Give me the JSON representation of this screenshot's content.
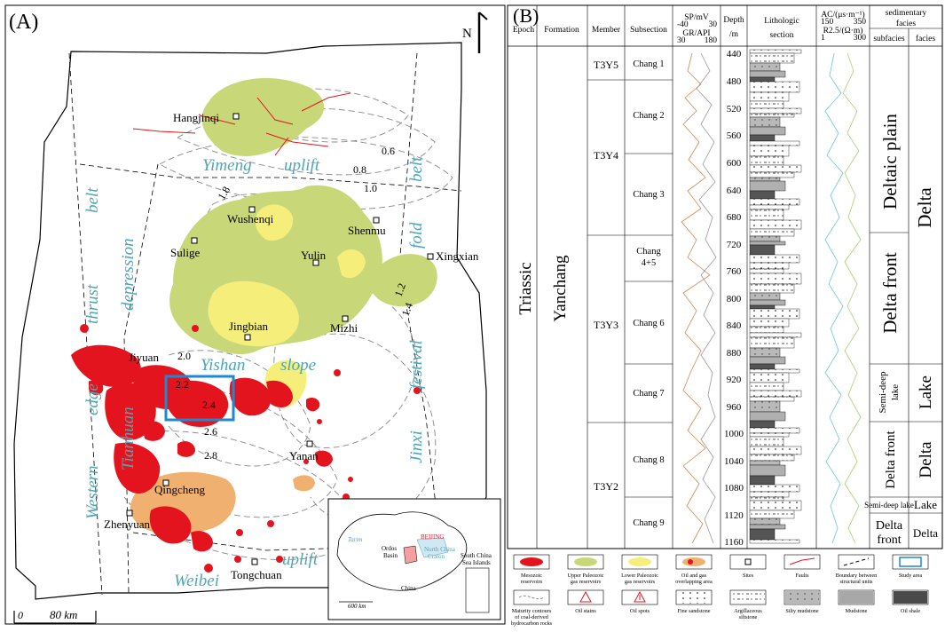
{
  "panel_a": {
    "label": "(A)",
    "north": "N",
    "scale_zero": "0",
    "scale_label": "80 km",
    "belts": {
      "western": "Western",
      "edge": "edge",
      "thrust": "thrust",
      "belt_left": "belt",
      "tianhuan": "Tianhuan",
      "depression": "depression",
      "yimeng": "Yimeng",
      "uplift_top": "uplift",
      "yishan": "Yishan",
      "slope": "slope",
      "weibei": "Weibei",
      "uplift_bottom": "uplift",
      "jinxi": "Jinxi",
      "festival": "festival",
      "fold": "fold",
      "belt_right": "belt"
    },
    "sites": [
      "Hangjinqi",
      "Sulige",
      "Wushenqi",
      "Shenmu",
      "Yulin",
      "Xingxian",
      "Jingbian",
      "Mizhi",
      "Jiyuan",
      "Yanan",
      "Qingcheng",
      "Zhenyuan",
      "Tongchuan"
    ],
    "contours": [
      "0.6",
      "0.8",
      "1.0",
      "1.8",
      "1.2",
      "1.4",
      "2.0",
      "2.2",
      "2.4",
      "2.6",
      "2.8"
    ],
    "inset": {
      "tarim": "Tarim",
      "beijing": "BEIJING",
      "ordos": "Ordos",
      "basin": "Basin",
      "ncc": "North China",
      "craton": "Craton",
      "china": "China",
      "scs": "South China",
      "sea": "Sea Islands",
      "scale": "600 km"
    }
  },
  "panel_b": {
    "label": "(B)",
    "headers": {
      "epoch": "Epoch",
      "formation": "Formation",
      "member": "Member",
      "subsection": "Subsection",
      "sp": "SP/mV",
      "sp_min": "-40",
      "sp_max": "30",
      "gr": "GR/API",
      "gr_min": "30",
      "gr_max": "180",
      "depth1": "Depth",
      "depth2": "/m",
      "litho1": "Lithologic",
      "litho2": "section",
      "ac": "AC/(μs·m⁻¹)",
      "ac_min": "150",
      "ac_max": "350",
      "r": "R2.5/(Ω·m)",
      "r_min": "1",
      "r_max": "300",
      "sed1": "sedimentary",
      "sed2": "facies",
      "subfacies": "subfacies",
      "facies": "facies"
    },
    "epoch": "Triassic",
    "formation": "Yanchang",
    "members": [
      "T3Y5",
      "T3Y4",
      "T3Y3",
      "T3Y2"
    ],
    "subsections": [
      "Chang 1",
      "Chang 2",
      "Chang 3",
      "Chang",
      "4+5",
      "Chang 6",
      "Chang 7",
      "Chang 8",
      "Chang 9"
    ],
    "depths": [
      "440",
      "480",
      "520",
      "560",
      "600",
      "640",
      "680",
      "720",
      "760",
      "800",
      "840",
      "880",
      "920",
      "960",
      "1000",
      "1040",
      "1080",
      "1120",
      "1160"
    ],
    "subfacies": [
      "Deltaic plain",
      "Delta front",
      "Semi-deep",
      "lake",
      "Delta front",
      "Semi-deep lake",
      "Delta",
      "front"
    ],
    "facies": [
      "Delta",
      "Lake",
      "Delta",
      "Lake",
      "Delta"
    ]
  },
  "legend": [
    {
      "label": "Mesozoic reservoirs",
      "icon": "red-blob"
    },
    {
      "label": "Upper Paleozoic gas reservoirs",
      "icon": "green-blob"
    },
    {
      "label": "Lower Paleozoic gas reservoirs",
      "icon": "yellow-blob"
    },
    {
      "label": "Oil and gas overlapping area",
      "icon": "mixed-blob"
    },
    {
      "label": "Sites",
      "icon": "square"
    },
    {
      "label": "Faults",
      "icon": "red-line"
    },
    {
      "label": "Boundary between structural units",
      "icon": "dashed-line"
    },
    {
      "label": "Study area",
      "icon": "blue-rect"
    },
    {
      "label": "Maturity contours of coal-derived hydrocarbon rocks",
      "icon": "contour"
    },
    {
      "label": "Oil stains",
      "icon": "triangle"
    },
    {
      "label": "Oil spots",
      "icon": "triangle-mark"
    },
    {
      "label": "Fine sandstone",
      "icon": "dots"
    },
    {
      "label": "Argillaceous siltstone",
      "icon": "dashes"
    },
    {
      "label": "Silty mudstone",
      "icon": "gray-dots"
    },
    {
      "label": "Mudstone",
      "icon": "gray"
    },
    {
      "label": "Oil shale",
      "icon": "dark"
    }
  ],
  "colors": {
    "reservoir_red": "#e4141f",
    "gas_green": "#c8d878",
    "gas_yellow": "#f5ee7a",
    "overlap_orange": "#f0b070",
    "study_blue": "#1e88d0",
    "text_teal": "#4aa6b8"
  }
}
